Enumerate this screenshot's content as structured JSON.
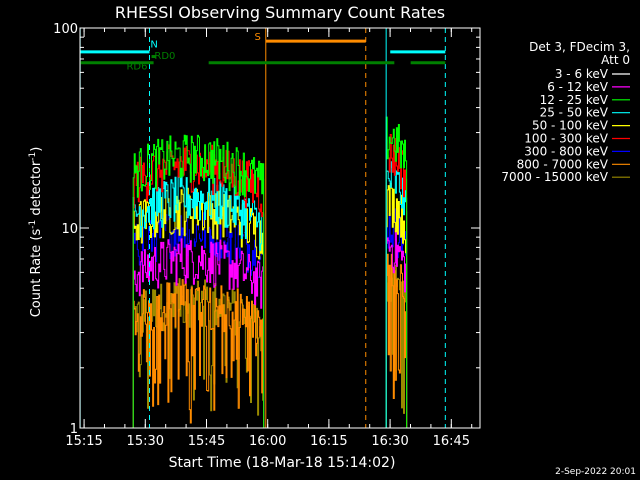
{
  "chart_data": {
    "type": "line",
    "title": "RHESSI Observing Summary Count Rates",
    "xlabel": "Start Time (18-Mar-18 15:14:02)",
    "ylabel_main": "Count Rate (s",
    "ylabel_sup1": "-1",
    "ylabel_mid": " detector",
    "ylabel_sup2": "-1",
    "ylabel_end": ")",
    "x_range_minutes": [
      -0.0333,
      98.0
    ],
    "ylim": [
      1,
      100
    ],
    "y_scale": "log",
    "x_ticks": [
      {
        "label": "15:15",
        "minute": 0.967
      },
      {
        "label": "15:30",
        "minute": 15.967
      },
      {
        "label": "15:45",
        "minute": 30.967
      },
      {
        "label": "16:00",
        "minute": 45.967
      },
      {
        "label": "16:15",
        "minute": 60.967
      },
      {
        "label": "16:30",
        "minute": 75.967
      },
      {
        "label": "16:45",
        "minute": 90.967
      }
    ],
    "y_ticks": [
      {
        "label": "1",
        "value": 1
      },
      {
        "label": "10",
        "value": 10
      },
      {
        "label": "100",
        "value": 100
      }
    ],
    "legend_header": [
      "Det 3, FDecim 3,",
      "Att 0"
    ],
    "series": [
      {
        "name": "3 - 6 keV",
        "color": "#000000",
        "level1": 11,
        "level2": 16
      },
      {
        "name": "6 - 12 keV",
        "color": "#ff00ff",
        "level1": 6.5,
        "level2": 7.5
      },
      {
        "name": "12 - 25 keV",
        "color": "#00ff00",
        "level1": 21,
        "level2": 26
      },
      {
        "name": "25 - 50 keV",
        "color": "#00ffff",
        "level1": 13,
        "level2": 16
      },
      {
        "name": "50 - 100 keV",
        "color": "#ffff00",
        "level1": 11.5,
        "level2": 12.5
      },
      {
        "name": "100 - 300 keV",
        "color": "#ff0000",
        "level1": 19,
        "level2": 22
      },
      {
        "name": "300 - 800 keV",
        "color": "#0000ff",
        "level1": 9,
        "level2": 9.5
      },
      {
        "name": "800 - 7000 keV",
        "color": "#ff8c00",
        "level1": 4,
        "level2": 5.5
      },
      {
        "name": "7000 - 15000 keV",
        "color": "#9a8a00",
        "level1": 4,
        "level2": 5
      }
    ],
    "flare_segments": [
      {
        "start": 13.0,
        "end": 45.0
      },
      {
        "start": 75.0,
        "end": 80.0
      }
    ],
    "annotations": {
      "N": {
        "label": "N",
        "color": "#00ffff",
        "bars": [
          [
            0.0,
            17.0
          ],
          [
            76.0,
            89.5
          ]
        ],
        "value": 76
      },
      "S": {
        "label": "S",
        "color": "#ff8c00",
        "bars": [
          [
            45.5,
            70.0
          ]
        ],
        "value": 86
      },
      "RD0": {
        "label": "RD0",
        "color": "#008000",
        "bars": [
          [
            17.5,
            18.5
          ]
        ],
        "value": 72
      },
      "RD6": {
        "label": "RD6",
        "color": "#008000",
        "bars": [
          [
            0.0,
            18.0
          ],
          [
            31.5,
            70.0
          ],
          [
            70.0,
            77.0
          ],
          [
            81.0,
            89.5
          ]
        ],
        "value": 67
      }
    },
    "vertical_lines": [
      {
        "minute": 0.0,
        "color": "#00ffff",
        "style": "solid"
      },
      {
        "minute": 17.0,
        "color": "#00ffff",
        "style": "dashed"
      },
      {
        "minute": 45.5,
        "color": "#ff8c00",
        "style": "solid"
      },
      {
        "minute": 70.0,
        "color": "#ff8c00",
        "style": "dashed"
      },
      {
        "minute": 75.0,
        "color": "#00ffff",
        "style": "solid"
      },
      {
        "minute": 89.5,
        "color": "#00ffff",
        "style": "dashed"
      }
    ],
    "timestamp": "2-Sep-2022 20:01"
  }
}
